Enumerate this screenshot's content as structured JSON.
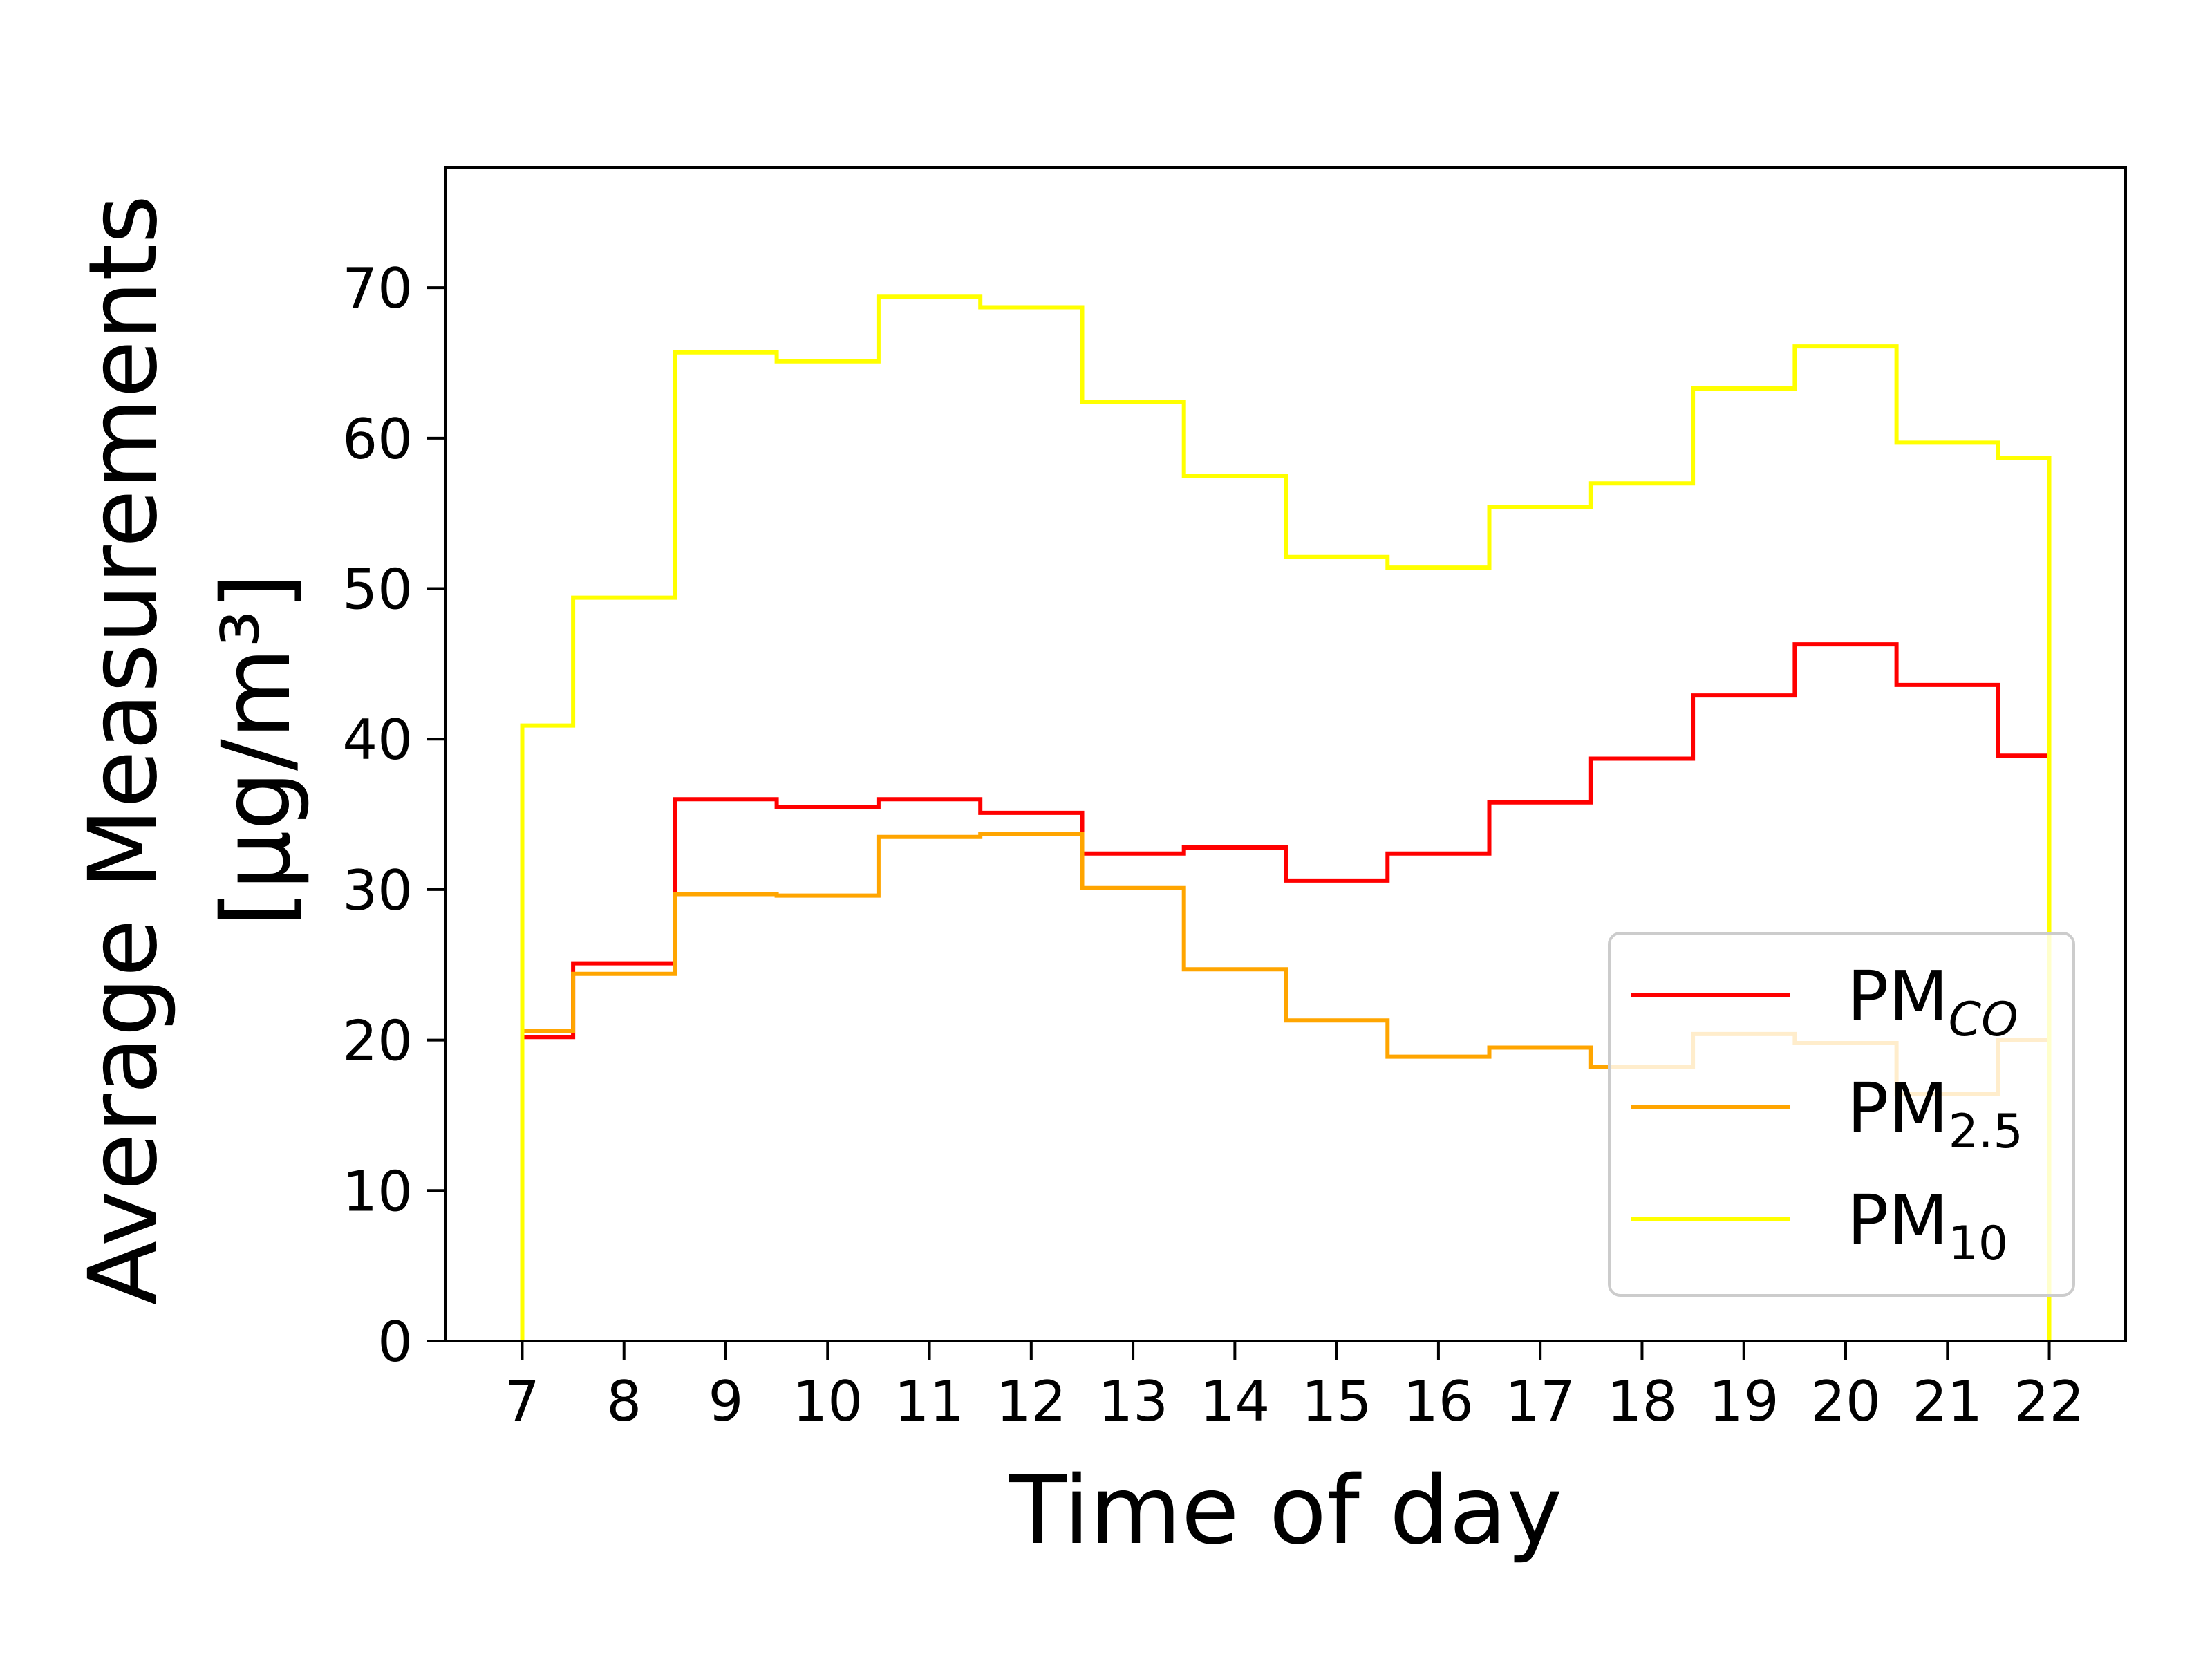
{
  "chart_data": {
    "type": "line",
    "step": "mid",
    "title": "",
    "xlabel": "Time of day",
    "ylabel_line1": "Average Measurements",
    "ylabel_line2": "[μg/m³]",
    "xlim": [
      6.25,
      22.75
    ],
    "ylim": [
      0,
      78
    ],
    "x_ticks": [
      7,
      8,
      9,
      10,
      11,
      12,
      13,
      14,
      15,
      16,
      17,
      18,
      19,
      20,
      21,
      22
    ],
    "y_ticks": [
      0,
      10,
      20,
      30,
      40,
      50,
      60,
      70
    ],
    "grid": false,
    "legend_position": "lower-right",
    "x": [
      7,
      8,
      9,
      10,
      11,
      12,
      13,
      14,
      15,
      16,
      17,
      18,
      19,
      20,
      21,
      22
    ],
    "series": [
      {
        "base": "PM",
        "sub": "CO",
        "sub_italic": true,
        "color": "#ff0000",
        "values": [
          20.2,
          25.1,
          36.0,
          35.5,
          36.0,
          35.1,
          32.4,
          32.8,
          30.6,
          32.4,
          35.8,
          38.7,
          42.9,
          46.3,
          43.6,
          38.9
        ]
      },
      {
        "base": "PM",
        "sub": "2.5",
        "sub_italic": false,
        "color": "#ffa500",
        "values": [
          20.6,
          24.4,
          29.7,
          29.6,
          33.5,
          33.7,
          30.1,
          24.7,
          21.3,
          18.9,
          19.5,
          18.2,
          20.4,
          19.8,
          16.4,
          20.0
        ]
      },
      {
        "base": "PM",
        "sub": "10",
        "sub_italic": false,
        "color": "#ffff00",
        "values": [
          40.9,
          49.4,
          65.7,
          65.1,
          69.4,
          68.7,
          62.4,
          57.5,
          52.1,
          51.4,
          55.4,
          57.0,
          63.3,
          66.1,
          59.7,
          58.7
        ]
      }
    ]
  }
}
